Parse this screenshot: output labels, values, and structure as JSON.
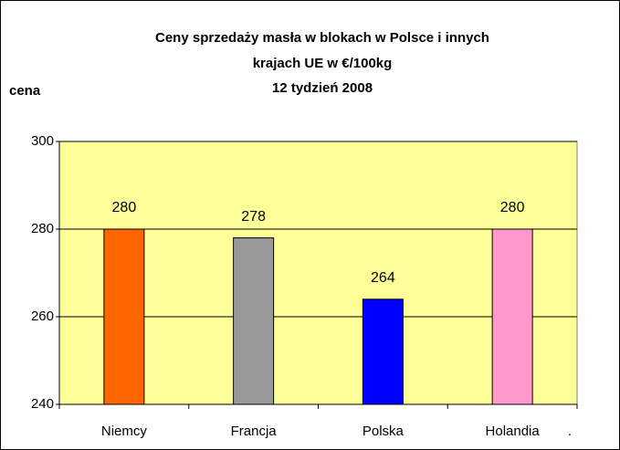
{
  "chart_data": {
    "type": "bar",
    "title": [
      "Ceny sprzedaży masła w blokach w Polsce i  innych",
      "krajach UE w €/100kg",
      "12 tydzień 2008"
    ],
    "y_label": "cena",
    "annotation": ".",
    "categories": [
      "Niemcy",
      "Francja",
      "Polska",
      "Holandia"
    ],
    "values": [
      280,
      278,
      264,
      280
    ],
    "colors": [
      "#ff6600",
      "#999999",
      "#0000ff",
      "#ff99cc"
    ],
    "plot_background": "#ffff99",
    "ylim": [
      240,
      300
    ],
    "yticks": [
      240,
      260,
      280,
      300
    ],
    "grid": true
  }
}
